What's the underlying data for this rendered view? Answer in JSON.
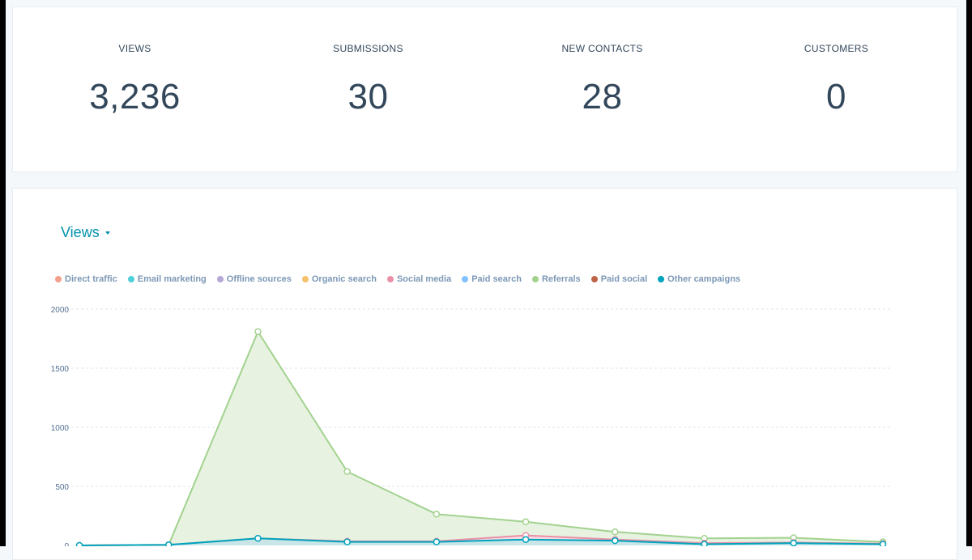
{
  "stats": [
    {
      "label": "VIEWS",
      "value": "3,236"
    },
    {
      "label": "SUBMISSIONS",
      "value": "30"
    },
    {
      "label": "NEW CONTACTS",
      "value": "28"
    },
    {
      "label": "CUSTOMERS",
      "value": "0"
    }
  ],
  "chart_header": {
    "metric": "Views",
    "dropdown_icon": "caret-down-icon"
  },
  "colors": {
    "accent": "#0091ae",
    "text": "#33475b",
    "legend_text": "#7c98b6",
    "page_bg": "#f5f8fa",
    "card_bg": "#ffffff",
    "referral_fill": "#e3f0dc",
    "other_fill": "#bfe0e4"
  },
  "legend": [
    {
      "label": "Direct traffic",
      "color": "#f2a08a"
    },
    {
      "label": "Email marketing",
      "color": "#4fd0d8"
    },
    {
      "label": "Offline sources",
      "color": "#b4a7d6"
    },
    {
      "label": "Organic search",
      "color": "#f5c26b"
    },
    {
      "label": "Social media",
      "color": "#ea90a8"
    },
    {
      "label": "Paid search",
      "color": "#81c1fd"
    },
    {
      "label": "Referrals",
      "color": "#a2d28f"
    },
    {
      "label": "Paid social",
      "color": "#c0624a"
    },
    {
      "label": "Other campaigns",
      "color": "#00a4bd"
    }
  ],
  "chart_data": {
    "type": "area",
    "stacked": true,
    "x": [
      1,
      2,
      3,
      4,
      5,
      6,
      7,
      8,
      9,
      10
    ],
    "ylim": [
      0,
      2000
    ],
    "yticks": [
      0,
      500,
      1000,
      1500,
      2000
    ],
    "grid": true,
    "legend_position": "top",
    "series": [
      {
        "name": "Other campaigns",
        "color": "#00a4bd",
        "values": [
          0,
          5,
          60,
          30,
          30,
          50,
          40,
          10,
          20,
          10
        ]
      },
      {
        "name": "Social media",
        "color": "#ea90a8",
        "values": [
          0,
          0,
          0,
          5,
          5,
          35,
          10,
          10,
          5,
          5
        ]
      },
      {
        "name": "Referrals",
        "color": "#a2d28f",
        "values": [
          0,
          0,
          1750,
          590,
          230,
          115,
          65,
          40,
          40,
          15
        ]
      }
    ]
  }
}
